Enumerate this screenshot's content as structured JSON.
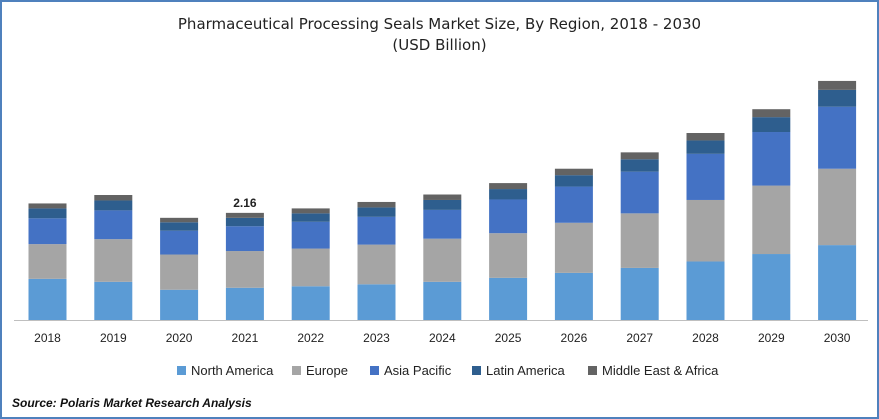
{
  "chart_data": {
    "type": "bar",
    "stacked": true,
    "title": "Pharmaceutical Processing Seals Market Size, By Region, 2018 - 2030",
    "subtitle": "(USD Billion)",
    "categories": [
      "2018",
      "2019",
      "2020",
      "2021",
      "2022",
      "2023",
      "2024",
      "2025",
      "2026",
      "2027",
      "2028",
      "2029",
      "2030"
    ],
    "series": [
      {
        "name": "North America",
        "color": "#5b9bd5",
        "values": [
          0.83,
          0.77,
          0.61,
          0.65,
          0.68,
          0.72,
          0.77,
          0.85,
          0.95,
          1.05,
          1.18,
          1.33,
          1.51
        ]
      },
      {
        "name": "Europe",
        "color": "#a5a5a5",
        "values": [
          0.7,
          0.86,
          0.71,
          0.74,
          0.76,
          0.8,
          0.87,
          0.9,
          1.01,
          1.1,
          1.24,
          1.38,
          1.54
        ]
      },
      {
        "name": "Asia Pacific",
        "color": "#4472c4",
        "values": [
          0.52,
          0.58,
          0.48,
          0.5,
          0.54,
          0.56,
          0.58,
          0.68,
          0.73,
          0.84,
          0.93,
          1.08,
          1.25
        ]
      },
      {
        "name": "Latin America",
        "color": "#2e5e8e",
        "values": [
          0.2,
          0.2,
          0.17,
          0.17,
          0.17,
          0.19,
          0.2,
          0.21,
          0.23,
          0.25,
          0.27,
          0.3,
          0.34
        ]
      },
      {
        "name": "Middle East & Africa",
        "color": "#636363",
        "values": [
          0.1,
          0.11,
          0.09,
          0.1,
          0.1,
          0.11,
          0.11,
          0.12,
          0.13,
          0.14,
          0.15,
          0.16,
          0.18
        ]
      }
    ],
    "annotations": [
      {
        "category": "2021",
        "label": "2.16"
      }
    ],
    "ylim": [
      0,
      5
    ],
    "grid": false,
    "legend": "bottom"
  },
  "source_text": "Source: Polaris  Market Research Analysis"
}
